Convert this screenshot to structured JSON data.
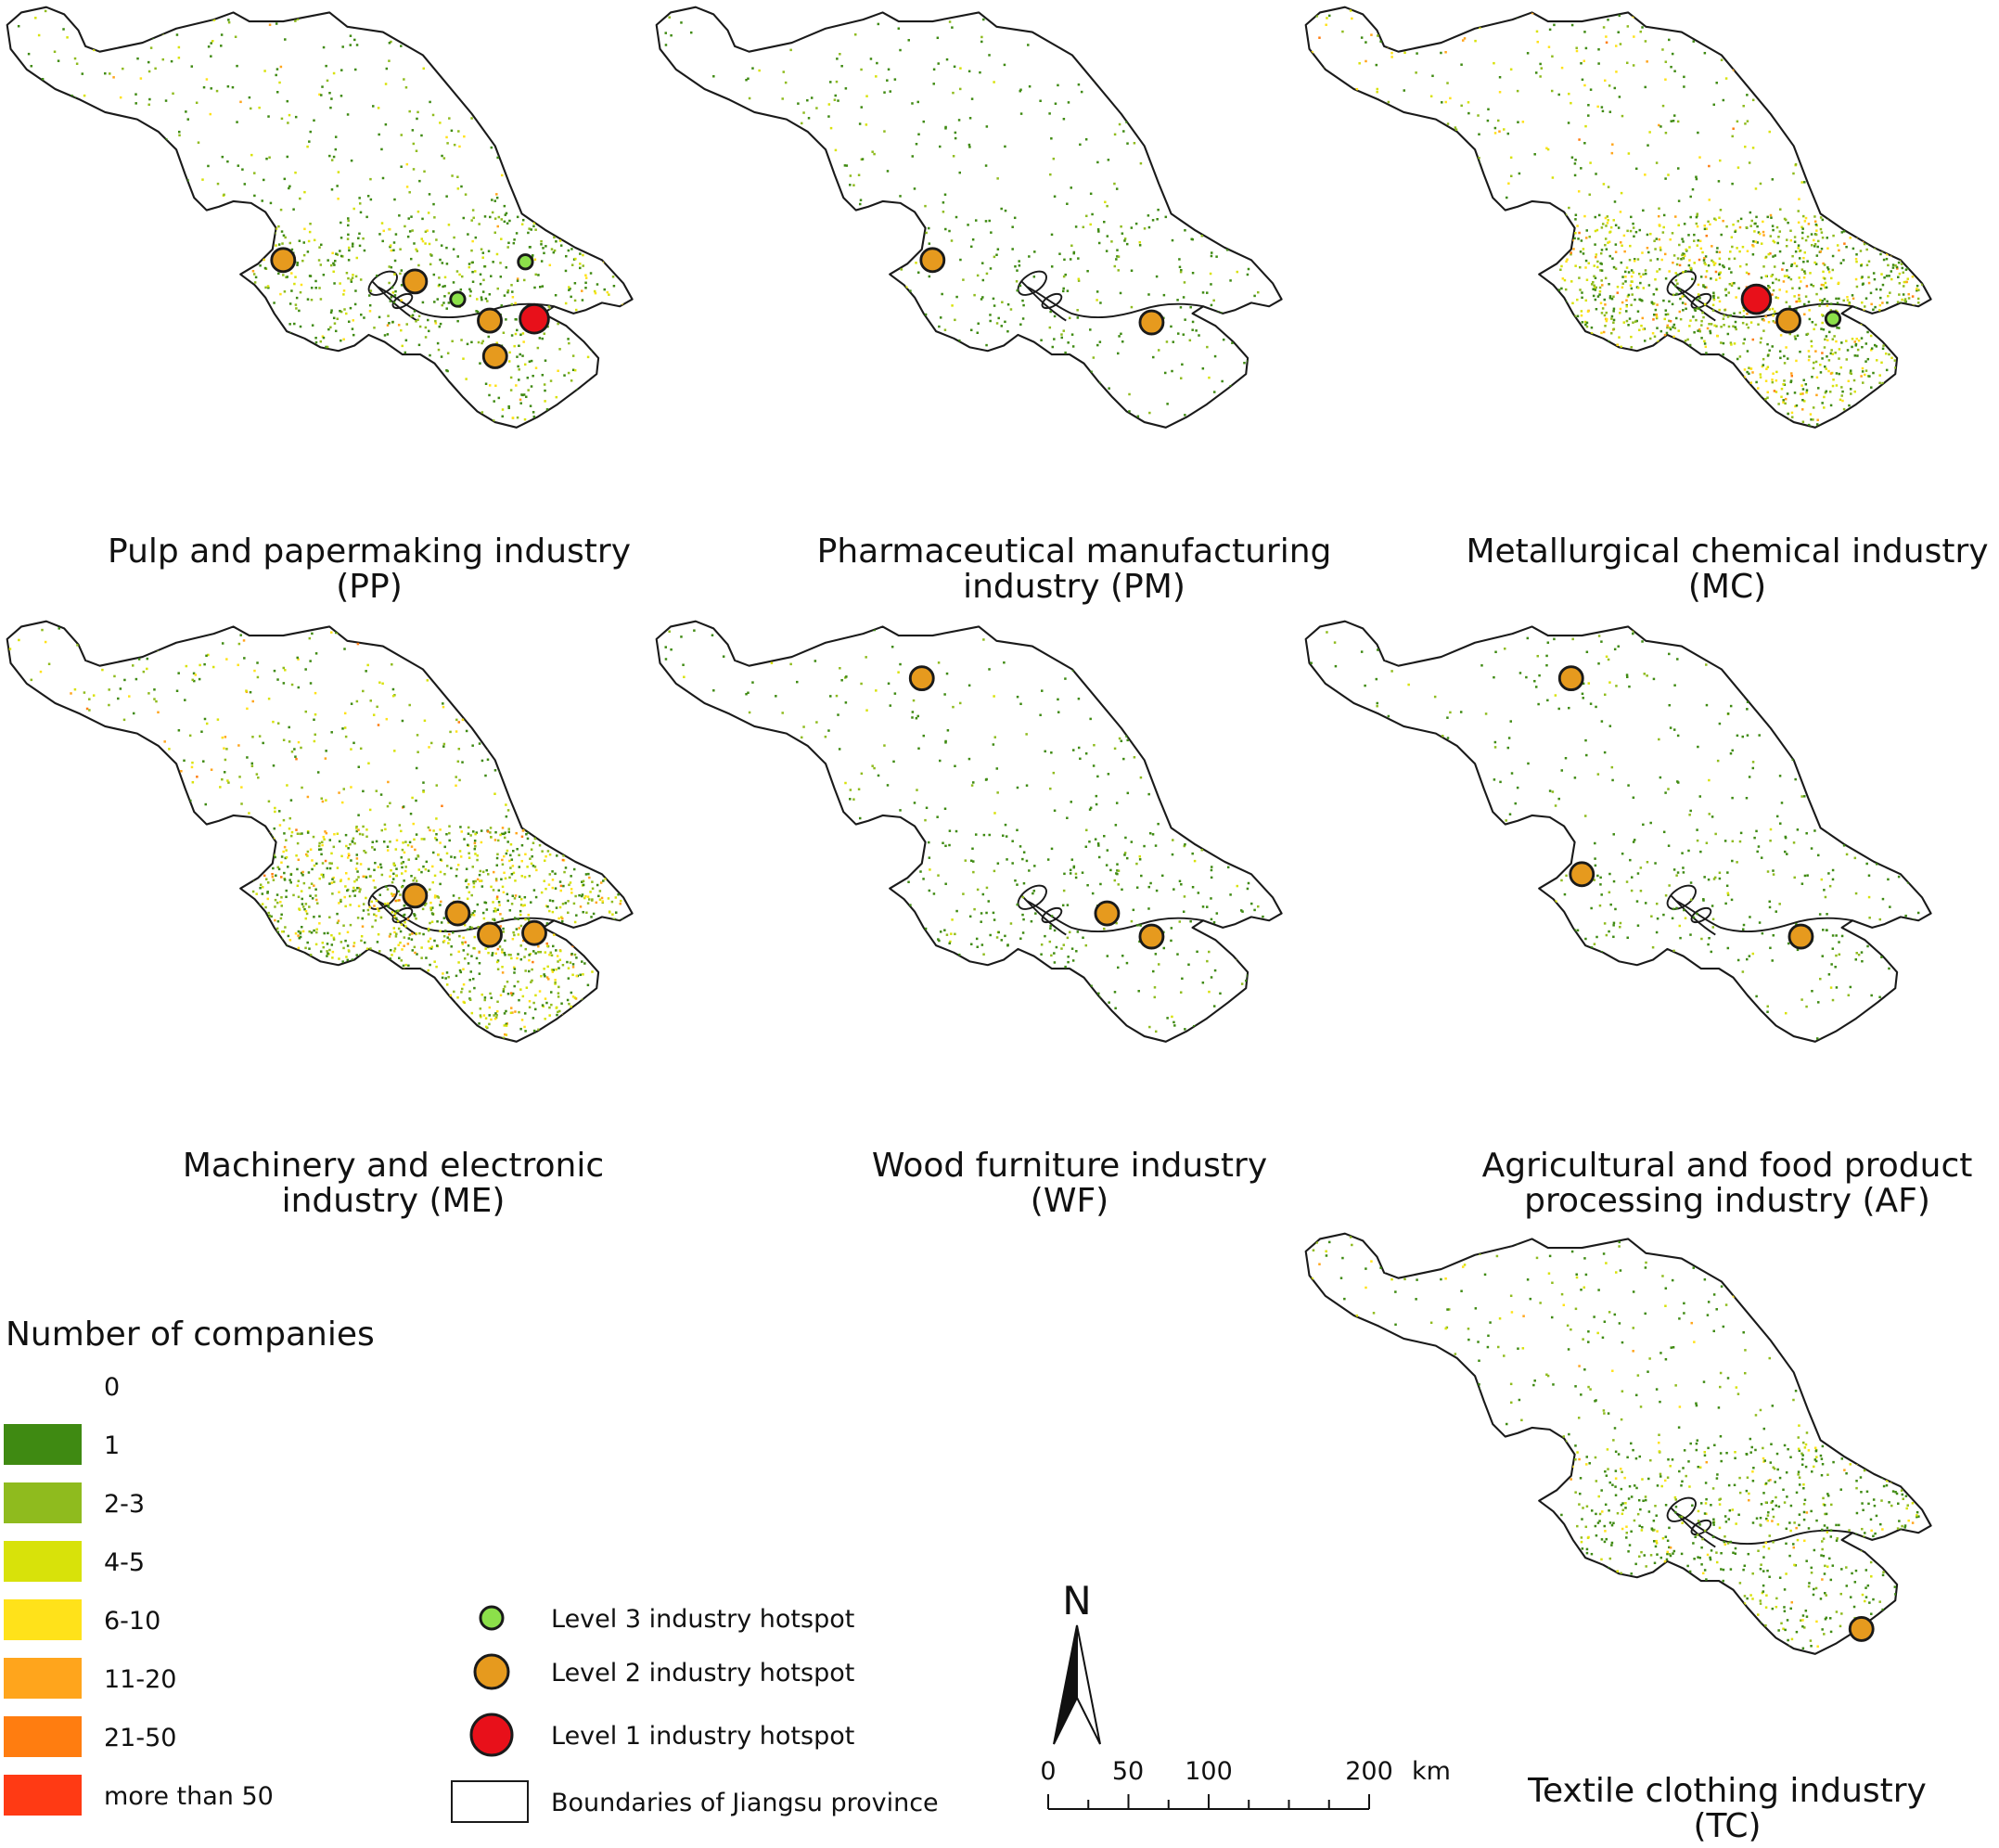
{
  "colors": {
    "bin_0": "#ffffff",
    "bin_1": "#3f8a12",
    "bin_2_3": "#8fbb1e",
    "bin_4_5": "#d8e20a",
    "bin_6_10": "#ffe21a",
    "bin_11_20": "#ffa51c",
    "bin_21_50": "#ff7d10",
    "bin_over_50": "#ff3a14",
    "hotspot_level3": "#8ce04a",
    "hotspot_level2": "#e69a1e",
    "hotspot_level1": "#e8101a"
  },
  "panels": [
    {
      "id": "pp",
      "title_line1": "Pulp and papermaking industry",
      "title_line2": "(PP)",
      "density": "medium",
      "hotspots": [
        {
          "level": 2,
          "site": "w"
        },
        {
          "level": 2,
          "site": "nj"
        },
        {
          "level": 3,
          "site": "zj"
        },
        {
          "level": 3,
          "site": "nt"
        },
        {
          "level": 2,
          "site": "cz"
        },
        {
          "level": 1,
          "site": "sz"
        },
        {
          "level": 2,
          "site": "hz"
        }
      ]
    },
    {
      "id": "pm",
      "title_line1": "Pharmaceutical manufacturing",
      "title_line2": "industry (PM)",
      "density": "sparse",
      "hotspots": [
        {
          "level": 2,
          "site": "w"
        },
        {
          "level": 2,
          "site": "wx"
        }
      ]
    },
    {
      "id": "mc",
      "title_line1": "Metallurgical chemical industry",
      "title_line2": "(MC)",
      "density": "dense",
      "hotspots": [
        {
          "level": 1,
          "site": "zj"
        },
        {
          "level": 2,
          "site": "cz"
        },
        {
          "level": 3,
          "site": "sz"
        }
      ]
    },
    {
      "id": "me",
      "title_line1": "Machinery and electronic",
      "title_line2": "industry (ME)",
      "density": "dense",
      "hotspots": [
        {
          "level": 2,
          "site": "nj"
        },
        {
          "level": 2,
          "site": "zj"
        },
        {
          "level": 2,
          "site": "cz"
        },
        {
          "level": 2,
          "site": "sz"
        }
      ]
    },
    {
      "id": "wf",
      "title_line1": "Wood furniture industry",
      "title_line2": "(WF)",
      "density": "sparse",
      "hotspots": [
        {
          "level": 2,
          "site": "xz"
        },
        {
          "level": 2,
          "site": "zj"
        },
        {
          "level": 2,
          "site": "wx"
        }
      ]
    },
    {
      "id": "af",
      "title_line1": "Agricultural and food product",
      "title_line2": "processing industry (AF)",
      "density": "sparse",
      "hotspots": [
        {
          "level": 2,
          "site": "xz"
        },
        {
          "level": 2,
          "site": "w"
        },
        {
          "level": 2,
          "site": "wx"
        }
      ]
    },
    {
      "id": "tc",
      "title_line1": "Textile clothing industry",
      "title_line2": "(TC)",
      "density": "medium",
      "hotspots": [
        {
          "level": 2,
          "site": "sse"
        }
      ]
    }
  ],
  "legend": {
    "title": "Number of companies",
    "bins": [
      {
        "label": "0",
        "color": "#ffffff"
      },
      {
        "label": "1",
        "color": "#3f8a12"
      },
      {
        "label": "2-3",
        "color": "#8fbb1e"
      },
      {
        "label": "4-5",
        "color": "#d8e20a"
      },
      {
        "label": "6-10",
        "color": "#ffe21a"
      },
      {
        "label": "11-20",
        "color": "#ffa51c"
      },
      {
        "label": "21-50",
        "color": "#ff7d10"
      },
      {
        "label": "more than 50",
        "color": "#ff3a14"
      }
    ],
    "hotspot_items": [
      {
        "label": "Level 3 industry hotspot",
        "level": 3
      },
      {
        "label": "Level 2 industry hotspot",
        "level": 2
      },
      {
        "label": "Level 1 industry hotspot",
        "level": 1
      }
    ],
    "boundary_label": "Boundaries of Jiangsu province"
  },
  "north_label": "N",
  "scale_bar": {
    "ticks": [
      "0",
      "50",
      "100",
      "200"
    ],
    "unit": "km"
  }
}
